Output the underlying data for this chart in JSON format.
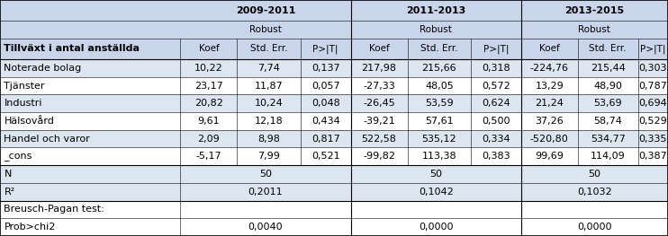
{
  "title_row": [
    "2009-2011",
    "2011-2013",
    "2013-2015"
  ],
  "robust_label": "Robust",
  "sub_headers": [
    "Koef",
    "Std. Err.",
    "P>|T|"
  ],
  "row_header": "Tillväxt i antal anställda",
  "rows": [
    [
      "Noterade bolag",
      "10,22",
      "7,74",
      "0,137",
      "217,98",
      "215,66",
      "0,318",
      "-224,76",
      "215,44",
      "0,303"
    ],
    [
      "Tjänster",
      "23,17",
      "11,87",
      "0,057",
      "-27,33",
      "48,05",
      "0,572",
      "13,29",
      "48,90",
      "0,787"
    ],
    [
      "Industri",
      "20,82",
      "10,24",
      "0,048",
      "-26,45",
      "53,59",
      "0,624",
      "21,24",
      "53,69",
      "0,694"
    ],
    [
      "Hälsovård",
      "9,61",
      "12,18",
      "0,434",
      "-39,21",
      "57,61",
      "0,500",
      "37,26",
      "58,74",
      "0,529"
    ],
    [
      "Handel och varor",
      "2,09",
      "8,98",
      "0,817",
      "522,58",
      "535,12",
      "0,334",
      "-520,80",
      "534,77",
      "0,335"
    ],
    [
      "_cons",
      "-5,17",
      "7,99",
      "0,521",
      "-99,82",
      "113,38",
      "0,383",
      "99,69",
      "114,09",
      "0,387"
    ]
  ],
  "n_values": [
    "50",
    "50",
    "50"
  ],
  "r2_values": [
    "0,2011",
    "0,1042",
    "0,1032"
  ],
  "prob_values": [
    "0,0040",
    "0,0000",
    "0,0000"
  ],
  "header_bg": "#c9d5ea",
  "subheader_bg": "#c9d5ea",
  "row_bg_even": "#dce6f1",
  "row_bg_odd": "#ffffff",
  "stat_bg": "#dce6f1",
  "bottom_bg": "#ffffff",
  "figsize": [
    7.42,
    2.63
  ],
  "dpi": 100,
  "fontsize": 8.0,
  "font_family": "DejaVu Sans"
}
